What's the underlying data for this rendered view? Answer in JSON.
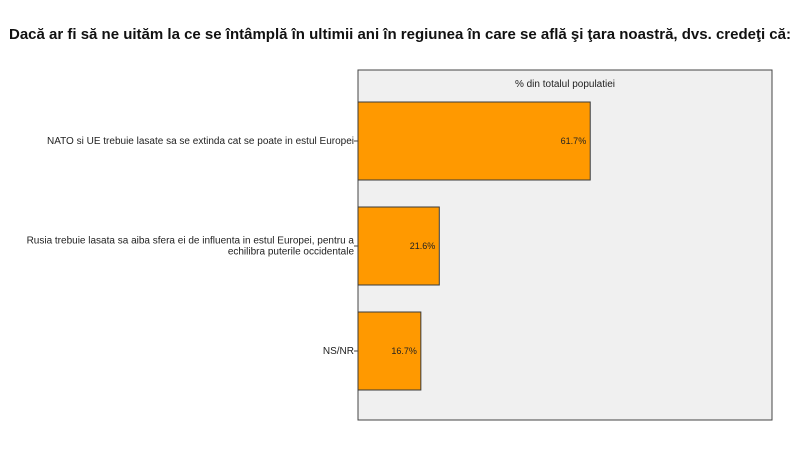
{
  "chart_data": {
    "type": "bar",
    "orientation": "horizontal",
    "title": "Dacă ar fi să ne uităm la ce se întâmplă în ultimii ani în regiunea în care se află şi ţara noastră, dvs. credeţi că:",
    "header_label": "% din totalul populatiei",
    "categories": [
      [
        "NATO si UE trebuie lasate sa se extinda cat se poate in estul Europei"
      ],
      [
        "Rusia trebuie lasata sa aiba sfera ei de influenta in estul Europei, pentru a",
        "echilibra puterile occidentale"
      ],
      [
        "NS/NR"
      ]
    ],
    "values": [
      61.7,
      21.6,
      16.7
    ],
    "value_labels": [
      "61.7%",
      "21.6%",
      "16.7%"
    ],
    "xlim": [
      0,
      110
    ],
    "grid": false,
    "legend": "none",
    "colors": {
      "bar": "#FF9900",
      "bar_stroke": "#3a3a3a",
      "plot_bg": "#F0F0F0"
    }
  }
}
